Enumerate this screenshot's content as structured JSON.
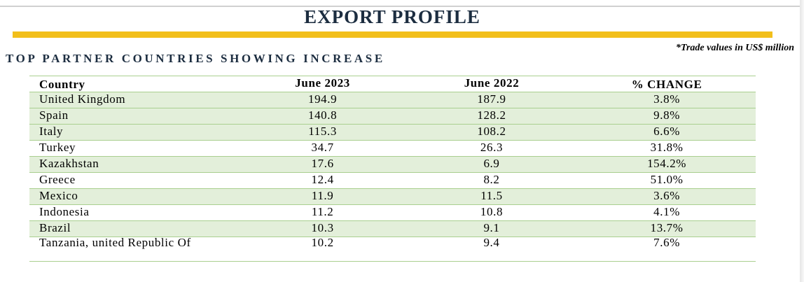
{
  "title": "EXPORT PROFILE",
  "subtitle": "TOP PARTNER COUNTRIES SHOWING INCREASE",
  "note": "*Trade values in US$ million",
  "colors": {
    "title": "#1c2d40",
    "accent_bar": "#f2bf1b",
    "row_shade": "#e3efda",
    "row_border": "#a9cf8f"
  },
  "table": {
    "headers": [
      "Country",
      "June 2023",
      "June 2022",
      "% CHANGE"
    ],
    "rows": [
      [
        "United Kingdom",
        "194.9",
        "187.9",
        "3.8%"
      ],
      [
        "Spain",
        "140.8",
        "128.2",
        "9.8%"
      ],
      [
        "Italy",
        "115.3",
        "108.2",
        "6.6%"
      ],
      [
        "Turkey",
        "34.7",
        "26.3",
        "31.8%"
      ],
      [
        "Kazakhstan",
        "17.6",
        "6.9",
        "154.2%"
      ],
      [
        "Greece",
        "12.4",
        "8.2",
        "51.0%"
      ],
      [
        "Mexico",
        "11.9",
        "11.5",
        "3.6%"
      ],
      [
        "Indonesia",
        "11.2",
        "10.8",
        "4.1%"
      ],
      [
        "Brazil",
        "10.3",
        "9.1",
        "13.7%"
      ],
      [
        "Tanzania, united Republic Of",
        "10.2",
        "9.4",
        "7.6%"
      ]
    ]
  }
}
